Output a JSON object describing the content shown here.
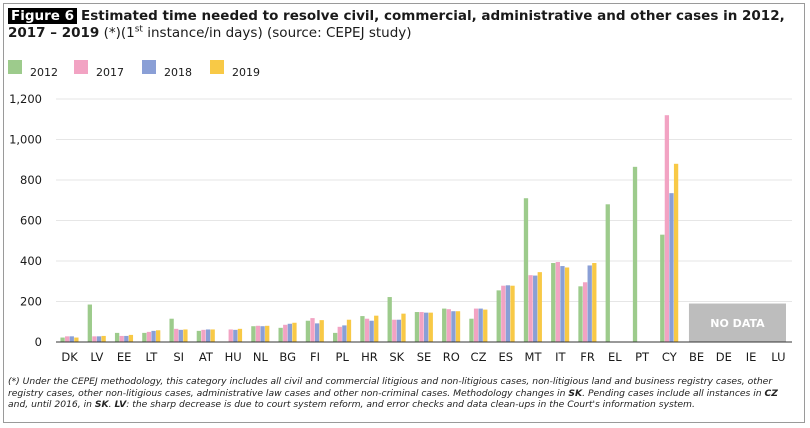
{
  "figure": {
    "badge": "Figure 6",
    "title": "Estimated time needed to resolve civil, commercial, administrative and other cases in 2012, 2017 – 2019",
    "subtitle_pre": "(*)(1",
    "subtitle_sup": "st",
    "subtitle_post": " instance/in days) (source: CEPEJ study)"
  },
  "chart_data": {
    "type": "bar",
    "categories": [
      "DK",
      "LV",
      "EE",
      "LT",
      "SI",
      "AT",
      "HU",
      "NL",
      "BG",
      "FI",
      "PL",
      "HR",
      "SK",
      "SE",
      "RO",
      "CZ",
      "ES",
      "MT",
      "IT",
      "FR",
      "EL",
      "PT",
      "CY",
      "BE",
      "DE",
      "IE",
      "LU"
    ],
    "series": [
      {
        "name": "2012",
        "color": "#9dcb8c",
        "values": [
          22,
          185,
          45,
          45,
          115,
          55,
          null,
          78,
          70,
          105,
          45,
          128,
          222,
          148,
          165,
          115,
          255,
          710,
          390,
          275,
          680,
          865,
          530,
          null,
          null,
          null,
          null
        ]
      },
      {
        "name": "2017",
        "color": "#f2a3c3",
        "values": [
          28,
          28,
          30,
          50,
          65,
          60,
          62,
          80,
          85,
          118,
          75,
          115,
          110,
          148,
          162,
          165,
          278,
          330,
          395,
          295,
          null,
          null,
          1120,
          null,
          null,
          null,
          null
        ]
      },
      {
        "name": "2018",
        "color": "#8a9fd6",
        "values": [
          28,
          28,
          30,
          55,
          60,
          62,
          60,
          78,
          90,
          92,
          82,
          105,
          110,
          145,
          152,
          165,
          280,
          328,
          375,
          378,
          null,
          null,
          735,
          null,
          null,
          null,
          null
        ]
      },
      {
        "name": "2019",
        "color": "#f8c946",
        "values": [
          22,
          30,
          35,
          58,
          62,
          62,
          65,
          80,
          95,
          108,
          110,
          130,
          140,
          145,
          152,
          160,
          278,
          345,
          368,
          390,
          null,
          null,
          880,
          null,
          null,
          null,
          null
        ]
      }
    ],
    "ylim": [
      0,
      1200
    ],
    "yticks": [
      0,
      200,
      400,
      600,
      800,
      1000,
      1200
    ],
    "ytick_labels": [
      "0",
      "200",
      "400",
      "600",
      "800",
      "1,000",
      "1,200"
    ],
    "no_data_label": "NO DATA",
    "no_data_categories": [
      "BE",
      "DE",
      "IE",
      "LU"
    ],
    "no_data_band_value": 190,
    "legend_position": "top-left"
  },
  "footnote": {
    "part1": "(*) Under the CEPEJ methodology, this category includes all civil and commercial litigious and non-litigious cases, non-litigious land and business registry cases, other registry cases, other non-litigious cases, administrative law cases and other non-criminal cases. Methodology changes in ",
    "sk1": "SK",
    "part2": ". Pending cases include all instances in ",
    "cz": "CZ",
    "part3": " and, until 2016, in ",
    "sk2": "SK",
    "part4": ". ",
    "lv": "LV",
    "part5": ": the sharp decrease is due to court system reform, and error checks and data clean-ups in the Court's information system."
  },
  "colors": {
    "grid": "#e6e6e6",
    "axis": "#333333",
    "no_data_fill": "#bdbdbd",
    "no_data_text": "#ffffff"
  }
}
